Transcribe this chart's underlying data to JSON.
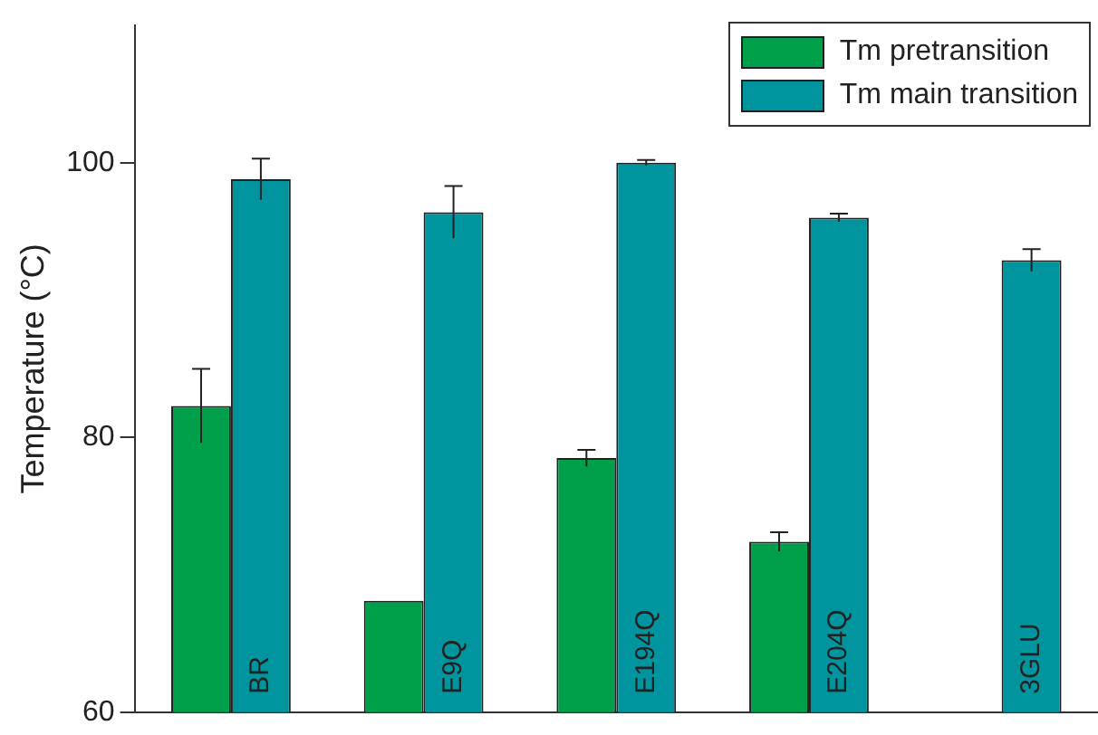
{
  "chart_data": {
    "type": "bar",
    "ylabel": "Temperature (°C)",
    "categories": [
      "BR",
      "E9Q",
      "E194Q",
      "E204Q",
      "3GLU"
    ],
    "series": [
      {
        "name": "Tm pretransition",
        "color": "#00a04a",
        "values": [
          82.3,
          68.1,
          78.5,
          72.4,
          null
        ],
        "errors": [
          2.7,
          null,
          0.6,
          0.7,
          null
        ]
      },
      {
        "name": "Tm main transition",
        "color": "#00959e",
        "values": [
          98.8,
          96.4,
          100.0,
          96.0,
          92.9
        ],
        "errors": [
          1.5,
          1.9,
          0.2,
          0.3,
          0.8
        ]
      }
    ],
    "ylim": [
      60,
      110
    ],
    "yticks": [
      60,
      80,
      100
    ],
    "grid": false,
    "legend": "top right"
  }
}
